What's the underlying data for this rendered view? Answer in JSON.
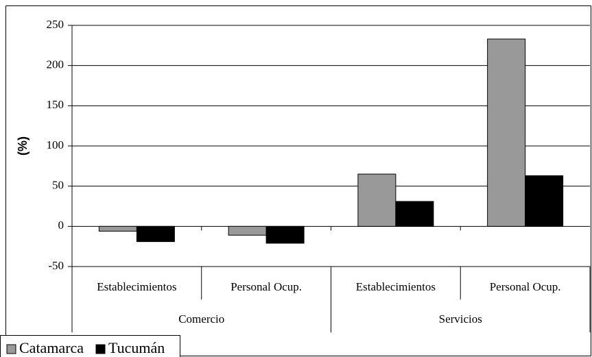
{
  "chart_data": {
    "type": "bar",
    "y_label": "(%)",
    "categories": [
      "Establecimientos",
      "Personal Ocup.",
      "Establecimientos",
      "Personal Ocup."
    ],
    "category_groups": [
      "Comercio",
      "Servicios"
    ],
    "series": [
      {
        "name": "Catamarca",
        "color": "#999999",
        "values": [
          -6,
          -11,
          65,
          233
        ]
      },
      {
        "name": "Tucumán",
        "color": "#000000",
        "values": [
          -19,
          -21,
          31,
          63
        ]
      }
    ],
    "ylim": [
      -50,
      250
    ],
    "yticks": [
      -50,
      0,
      50,
      100,
      150,
      200,
      250
    ],
    "grid": true
  }
}
